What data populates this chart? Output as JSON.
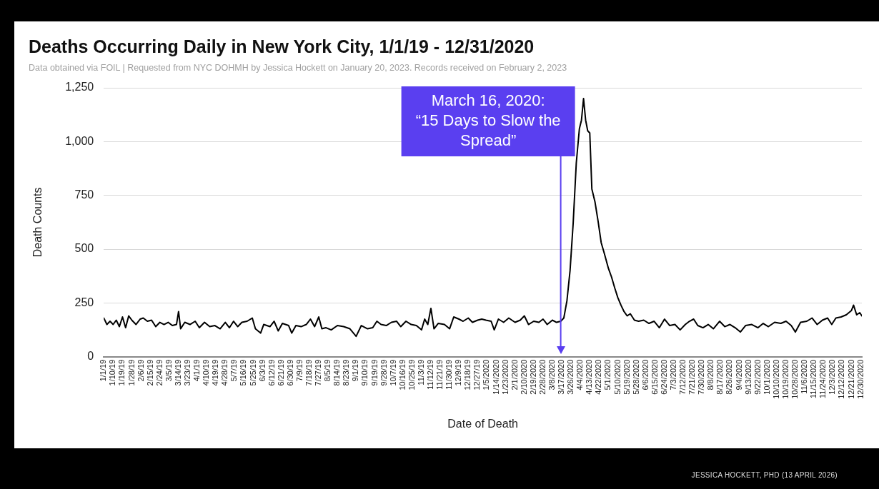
{
  "chart_data": {
    "type": "line",
    "title": "Deaths Occurring Daily in New York City, 1/1/19 - 12/31/2020",
    "subtitle": "Data obtained via FOIL | Requested from NYC DOHMH by Jessica Hockett on January 20, 2023. Records received on February 2, 2023",
    "xlabel": "Date of Death",
    "ylabel": "Death Counts",
    "annotations": [
      "JESSICA HOCKETT, PHD (13 APRIL 2026)"
    ],
    "ref_lines": [
      {
        "axis": "x",
        "value": "2020-03-16",
        "label": "March 16, 2020:\n“15 Days to Slow the\nSpread”",
        "color": "#5a3ff0"
      }
    ],
    "xlim": [
      "2019-01-01",
      "2020-12-31"
    ],
    "xticks": [
      {
        "value": "2019-01-01",
        "label": "1/1/19"
      },
      {
        "value": "2019-01-10",
        "label": "1/10/19"
      },
      {
        "value": "2019-01-19",
        "label": "1/19/19"
      },
      {
        "value": "2019-01-28",
        "label": "1/28/19"
      },
      {
        "value": "2019-02-06",
        "label": "2/6/19"
      },
      {
        "value": "2019-02-15",
        "label": "2/15/19"
      },
      {
        "value": "2019-02-24",
        "label": "2/24/19"
      },
      {
        "value": "2019-03-05",
        "label": "3/5/19"
      },
      {
        "value": "2019-03-14",
        "label": "3/14/19"
      },
      {
        "value": "2019-03-23",
        "label": "3/23/19"
      },
      {
        "value": "2019-04-01",
        "label": "4/1/19"
      },
      {
        "value": "2019-04-10",
        "label": "4/10/19"
      },
      {
        "value": "2019-04-19",
        "label": "4/19/19"
      },
      {
        "value": "2019-04-28",
        "label": "4/28/19"
      },
      {
        "value": "2019-05-07",
        "label": "5/7/19"
      },
      {
        "value": "2019-05-16",
        "label": "5/16/19"
      },
      {
        "value": "2019-05-25",
        "label": "5/25/19"
      },
      {
        "value": "2019-06-03",
        "label": "6/3/19"
      },
      {
        "value": "2019-06-12",
        "label": "6/12/19"
      },
      {
        "value": "2019-06-21",
        "label": "6/21/19"
      },
      {
        "value": "2019-06-30",
        "label": "6/30/19"
      },
      {
        "value": "2019-07-09",
        "label": "7/9/19"
      },
      {
        "value": "2019-07-18",
        "label": "7/18/19"
      },
      {
        "value": "2019-07-27",
        "label": "7/27/19"
      },
      {
        "value": "2019-08-05",
        "label": "8/5/19"
      },
      {
        "value": "2019-08-14",
        "label": "8/14/19"
      },
      {
        "value": "2019-08-23",
        "label": "8/23/19"
      },
      {
        "value": "2019-09-01",
        "label": "9/1/19"
      },
      {
        "value": "2019-09-10",
        "label": "9/10/19"
      },
      {
        "value": "2019-09-19",
        "label": "9/19/19"
      },
      {
        "value": "2019-09-28",
        "label": "9/28/19"
      },
      {
        "value": "2019-10-07",
        "label": "10/7/19"
      },
      {
        "value": "2019-10-16",
        "label": "10/16/19"
      },
      {
        "value": "2019-10-25",
        "label": "10/25/19"
      },
      {
        "value": "2019-11-03",
        "label": "11/3/19"
      },
      {
        "value": "2019-11-12",
        "label": "11/12/19"
      },
      {
        "value": "2019-11-21",
        "label": "11/21/19"
      },
      {
        "value": "2019-11-30",
        "label": "11/30/19"
      },
      {
        "value": "2019-12-09",
        "label": "12/9/19"
      },
      {
        "value": "2019-12-18",
        "label": "12/18/19"
      },
      {
        "value": "2019-12-27",
        "label": "12/27/19"
      },
      {
        "value": "2020-01-05",
        "label": "1/5/2020"
      },
      {
        "value": "2020-01-14",
        "label": "1/14/2020"
      },
      {
        "value": "2020-01-23",
        "label": "1/23/2020"
      },
      {
        "value": "2020-02-01",
        "label": "2/1/2020"
      },
      {
        "value": "2020-02-10",
        "label": "2/10/2020"
      },
      {
        "value": "2020-02-19",
        "label": "2/19/2020"
      },
      {
        "value": "2020-02-28",
        "label": "2/28/2020"
      },
      {
        "value": "2020-03-08",
        "label": "3/8/2020"
      },
      {
        "value": "2020-03-17",
        "label": "3/17/2020"
      },
      {
        "value": "2020-03-26",
        "label": "3/26/2020"
      },
      {
        "value": "2020-04-04",
        "label": "4/4/2020"
      },
      {
        "value": "2020-04-13",
        "label": "4/13/2020"
      },
      {
        "value": "2020-04-22",
        "label": "4/22/2020"
      },
      {
        "value": "2020-05-01",
        "label": "5/1/2020"
      },
      {
        "value": "2020-05-10",
        "label": "5/10/2020"
      },
      {
        "value": "2020-05-19",
        "label": "5/19/2020"
      },
      {
        "value": "2020-05-28",
        "label": "5/28/2020"
      },
      {
        "value": "2020-06-06",
        "label": "6/6/2020"
      },
      {
        "value": "2020-06-15",
        "label": "6/15/2020"
      },
      {
        "value": "2020-06-24",
        "label": "6/24/2020"
      },
      {
        "value": "2020-07-03",
        "label": "7/3/2020"
      },
      {
        "value": "2020-07-12",
        "label": "7/12/2020"
      },
      {
        "value": "2020-07-21",
        "label": "7/21/2020"
      },
      {
        "value": "2020-07-30",
        "label": "7/30/2020"
      },
      {
        "value": "2020-08-08",
        "label": "8/8/2020"
      },
      {
        "value": "2020-08-17",
        "label": "8/17/2020"
      },
      {
        "value": "2020-08-26",
        "label": "8/26/2020"
      },
      {
        "value": "2020-09-04",
        "label": "9/4/2020"
      },
      {
        "value": "2020-09-13",
        "label": "9/13/2020"
      },
      {
        "value": "2020-09-22",
        "label": "9/22/2020"
      },
      {
        "value": "2020-10-01",
        "label": "10/1/2020"
      },
      {
        "value": "2020-10-10",
        "label": "10/10/2020"
      },
      {
        "value": "2020-10-19",
        "label": "10/19/2020"
      },
      {
        "value": "2020-10-28",
        "label": "10/28/2020"
      },
      {
        "value": "2020-11-06",
        "label": "11/6/2020"
      },
      {
        "value": "2020-11-15",
        "label": "11/15/2020"
      },
      {
        "value": "2020-11-24",
        "label": "11/24/2020"
      },
      {
        "value": "2020-12-03",
        "label": "12/3/2020"
      },
      {
        "value": "2020-12-12",
        "label": "12/12/2020"
      },
      {
        "value": "2020-12-21",
        "label": "12/21/2020"
      },
      {
        "value": "2020-12-30",
        "label": "12/30/2020"
      }
    ],
    "ylim": [
      0,
      1250
    ],
    "yticks": [
      0,
      {
        "value": 250,
        "label": "250"
      },
      {
        "value": 500,
        "label": "500"
      },
      {
        "value": 750,
        "label": "750"
      },
      {
        "value": 1000,
        "label": "1,000"
      },
      {
        "value": 1250,
        "label": "1,250"
      }
    ],
    "grid": "y",
    "legend": false,
    "marker": "none",
    "line_style": "solid",
    "x": [
      "2019-01-01",
      "2019-01-04",
      "2019-01-07",
      "2019-01-10",
      "2019-01-13",
      "2019-01-16",
      "2019-01-19",
      "2019-01-22",
      "2019-01-25",
      "2019-01-28",
      "2019-02-01",
      "2019-02-05",
      "2019-02-08",
      "2019-02-12",
      "2019-02-16",
      "2019-02-20",
      "2019-02-24",
      "2019-02-28",
      "2019-03-04",
      "2019-03-08",
      "2019-03-12",
      "2019-03-14",
      "2019-03-16",
      "2019-03-20",
      "2019-03-25",
      "2019-03-30",
      "2019-04-03",
      "2019-04-08",
      "2019-04-13",
      "2019-04-18",
      "2019-04-23",
      "2019-04-28",
      "2019-05-02",
      "2019-05-06",
      "2019-05-10",
      "2019-05-14",
      "2019-05-19",
      "2019-05-24",
      "2019-05-27",
      "2019-06-01",
      "2019-06-04",
      "2019-06-10",
      "2019-06-14",
      "2019-06-18",
      "2019-06-22",
      "2019-06-28",
      "2019-07-01",
      "2019-07-05",
      "2019-07-10",
      "2019-07-15",
      "2019-07-19",
      "2019-07-23",
      "2019-07-27",
      "2019-07-30",
      "2019-08-03",
      "2019-08-08",
      "2019-08-14",
      "2019-08-20",
      "2019-08-26",
      "2019-09-01",
      "2019-09-06",
      "2019-09-12",
      "2019-09-17",
      "2019-09-21",
      "2019-09-25",
      "2019-09-30",
      "2019-10-05",
      "2019-10-10",
      "2019-10-14",
      "2019-10-19",
      "2019-10-24",
      "2019-10-29",
      "2019-11-03",
      "2019-11-06",
      "2019-11-09",
      "2019-11-12",
      "2019-11-15",
      "2019-11-19",
      "2019-11-25",
      "2019-11-30",
      "2019-12-04",
      "2019-12-09",
      "2019-12-13",
      "2019-12-18",
      "2019-12-22",
      "2019-12-27",
      "2019-12-31",
      "2020-01-04",
      "2020-01-09",
      "2020-01-12",
      "2020-01-16",
      "2020-01-21",
      "2020-01-26",
      "2020-02-01",
      "2020-02-06",
      "2020-02-10",
      "2020-02-14",
      "2020-02-19",
      "2020-02-24",
      "2020-02-28",
      "2020-03-03",
      "2020-03-08",
      "2020-03-12",
      "2020-03-16",
      "2020-03-19",
      "2020-03-22",
      "2020-03-25",
      "2020-03-28",
      "2020-03-31",
      "2020-04-03",
      "2020-04-05",
      "2020-04-07",
      "2020-04-09",
      "2020-04-11",
      "2020-04-13",
      "2020-04-15",
      "2020-04-18",
      "2020-04-21",
      "2020-04-24",
      "2020-04-27",
      "2020-05-01",
      "2020-05-04",
      "2020-05-07",
      "2020-05-10",
      "2020-05-13",
      "2020-05-16",
      "2020-05-19",
      "2020-05-22",
      "2020-05-26",
      "2020-05-30",
      "2020-06-04",
      "2020-06-09",
      "2020-06-14",
      "2020-06-19",
      "2020-06-24",
      "2020-06-29",
      "2020-07-04",
      "2020-07-09",
      "2020-07-14",
      "2020-07-18",
      "2020-07-22",
      "2020-07-26",
      "2020-07-31",
      "2020-08-05",
      "2020-08-10",
      "2020-08-16",
      "2020-08-21",
      "2020-08-26",
      "2020-08-31",
      "2020-09-05",
      "2020-09-10",
      "2020-09-16",
      "2020-09-22",
      "2020-09-27",
      "2020-10-02",
      "2020-10-08",
      "2020-10-14",
      "2020-10-19",
      "2020-10-24",
      "2020-10-28",
      "2020-11-02",
      "2020-11-08",
      "2020-11-13",
      "2020-11-18",
      "2020-11-23",
      "2020-11-28",
      "2020-12-02",
      "2020-12-06",
      "2020-12-11",
      "2020-12-16",
      "2020-12-21",
      "2020-12-23",
      "2020-12-26",
      "2020-12-29",
      "2020-12-31"
    ],
    "series": [
      {
        "color": "#000000",
        "values": [
          180,
          150,
          165,
          150,
          170,
          140,
          185,
          135,
          190,
          170,
          150,
          175,
          180,
          165,
          170,
          140,
          160,
          150,
          160,
          145,
          150,
          210,
          130,
          160,
          150,
          165,
          135,
          160,
          140,
          145,
          130,
          160,
          135,
          165,
          140,
          160,
          165,
          180,
          130,
          110,
          150,
          140,
          165,
          120,
          155,
          145,
          110,
          145,
          140,
          150,
          175,
          140,
          185,
          130,
          135,
          125,
          145,
          140,
          130,
          95,
          145,
          130,
          135,
          165,
          150,
          145,
          160,
          165,
          140,
          165,
          150,
          145,
          125,
          175,
          150,
          225,
          130,
          155,
          150,
          130,
          185,
          175,
          165,
          180,
          160,
          170,
          175,
          170,
          165,
          125,
          175,
          160,
          180,
          160,
          170,
          190,
          150,
          165,
          160,
          175,
          150,
          170,
          160,
          165,
          180,
          260,
          400,
          620,
          900,
          1060,
          1100,
          1200,
          1100,
          1050,
          1040,
          780,
          720,
          630,
          530,
          480,
          410,
          370,
          320,
          275,
          240,
          210,
          190,
          200,
          170,
          165,
          170,
          155,
          165,
          135,
          175,
          145,
          150,
          125,
          150,
          165,
          175,
          145,
          135,
          150,
          130,
          165,
          140,
          150,
          135,
          115,
          145,
          150,
          135,
          155,
          140,
          160,
          155,
          165,
          145,
          115,
          160,
          165,
          180,
          150,
          170,
          180,
          150,
          180,
          185,
          195,
          215,
          240,
          195,
          205,
          190
        ]
      }
    ]
  }
}
